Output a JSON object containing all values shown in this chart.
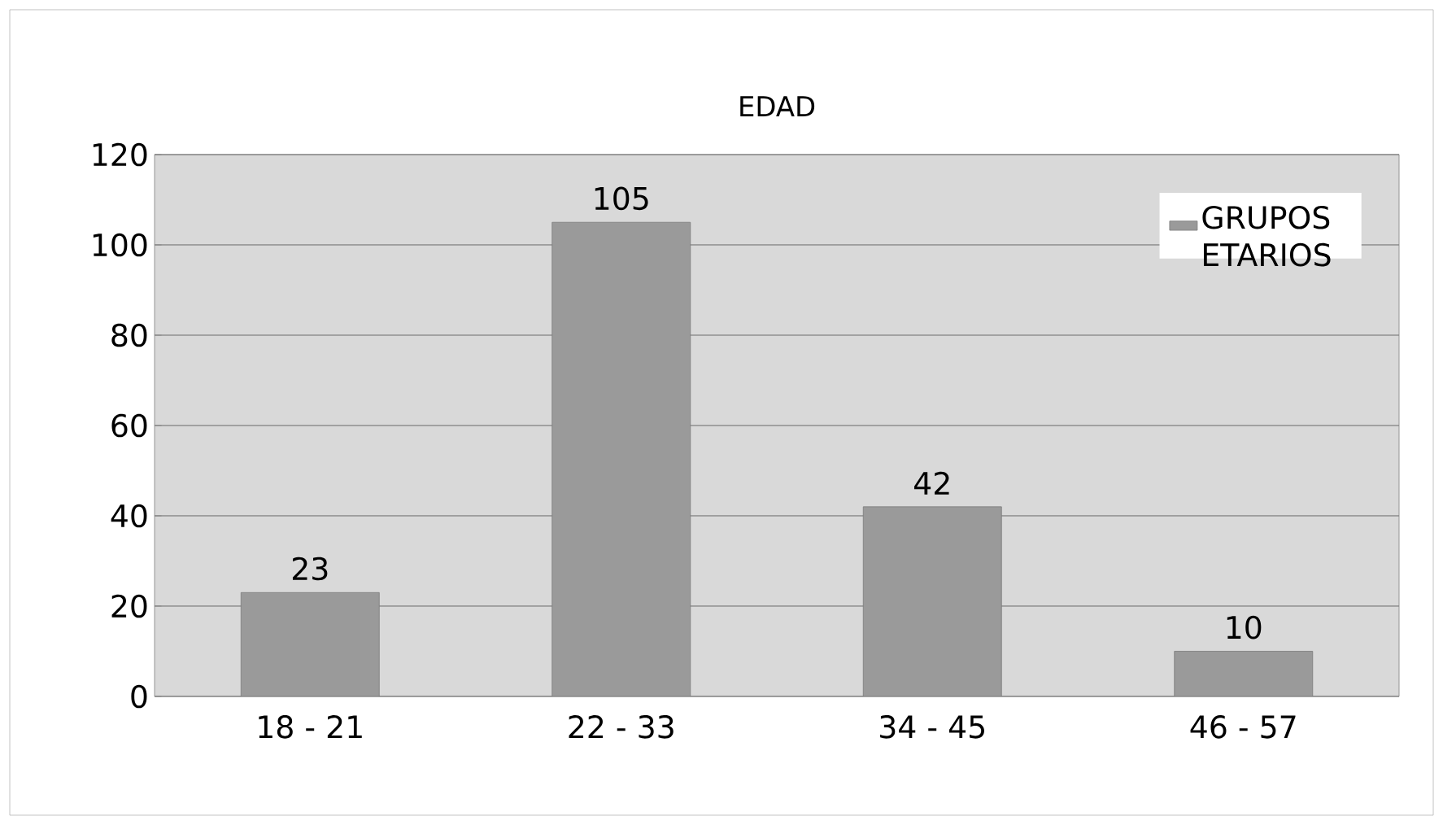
{
  "chart_data": {
    "type": "bar",
    "title": "EDAD",
    "categories": [
      "18 - 21",
      "22 - 33",
      "34 - 45",
      "46 - 57"
    ],
    "series": [
      {
        "name": "GRUPOS ETARIOS",
        "color": "#9a9a9a",
        "values": [
          23,
          105,
          42,
          10
        ]
      }
    ],
    "ylim": [
      0,
      120
    ],
    "yticks": [
      0,
      20,
      40,
      60,
      80,
      100,
      120
    ],
    "grid": "y",
    "legend": "top right",
    "data_labels": true
  }
}
